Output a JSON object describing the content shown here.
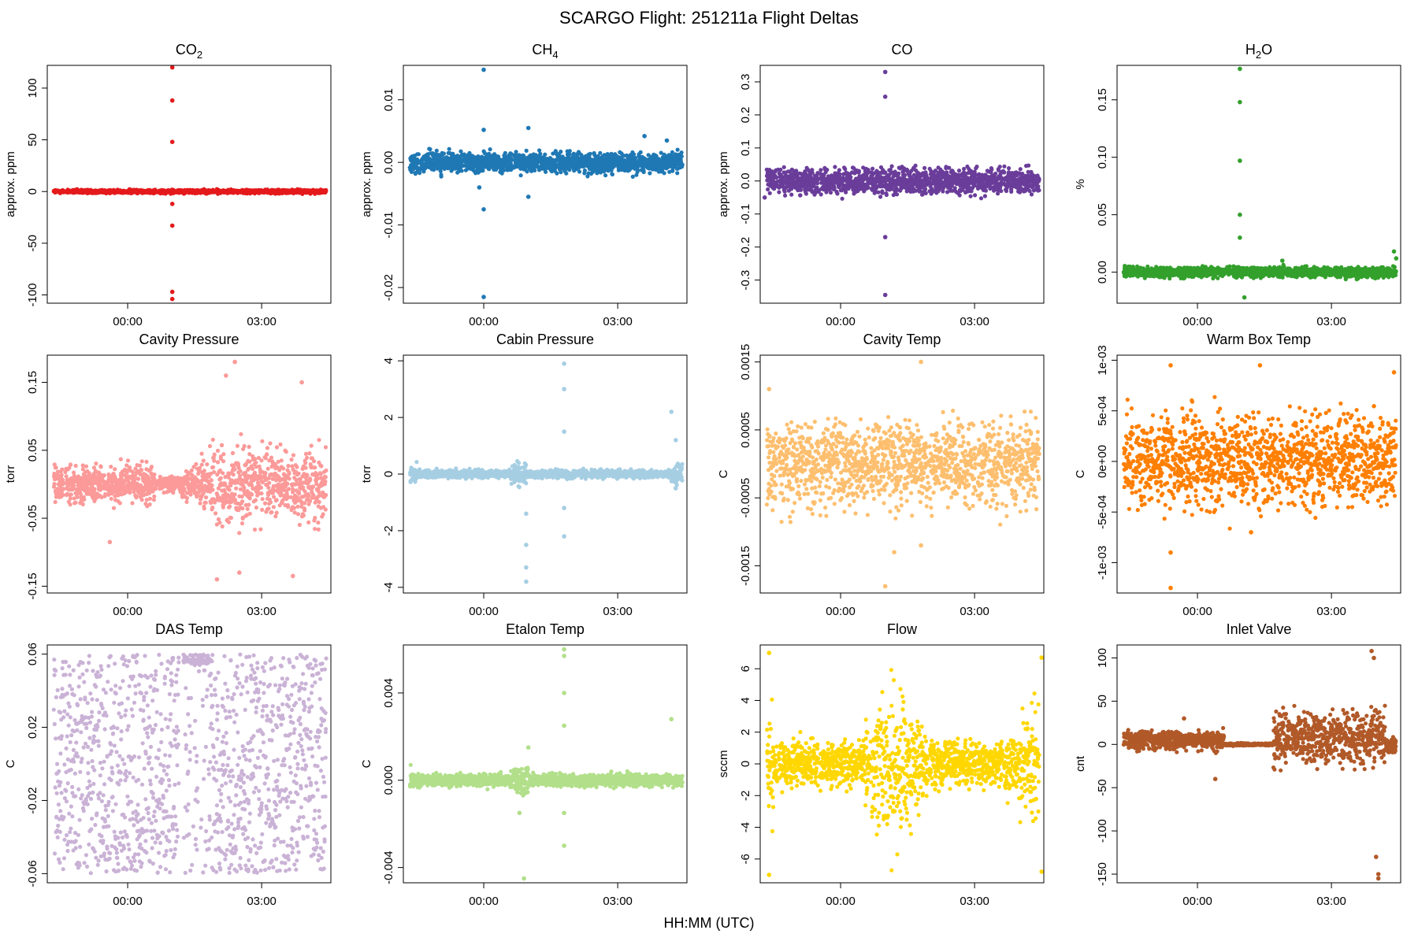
{
  "figure": {
    "title": "SCARGO Flight: 251211a  Flight Deltas",
    "xlabel": "HH:MM (UTC)"
  },
  "chart_data": [
    {
      "type": "scatter",
      "title": "CO2",
      "title_main": "CO",
      "title_sub": "2",
      "ylabel": "approx. ppm",
      "color": "#e41a1c",
      "ylim": [
        -108,
        122
      ],
      "yticks": [
        -100,
        -50,
        0,
        50,
        100
      ],
      "ytick_labels": [
        "-100",
        "-50",
        "0",
        "50",
        "100"
      ],
      "xlim": [
        -1.8,
        4.55
      ],
      "xticks": [
        0,
        3
      ],
      "xtick_labels": [
        "00:00",
        "03:00"
      ],
      "pattern": "flat",
      "noise": 1.5,
      "outliers": [
        [
          1.0,
          120
        ],
        [
          1.0,
          88
        ],
        [
          1.0,
          48
        ],
        [
          1.0,
          -33
        ],
        [
          1.0,
          -97
        ],
        [
          1.0,
          -104
        ],
        [
          1.0,
          -12
        ]
      ]
    },
    {
      "type": "scatter",
      "title": "CH4",
      "title_main": "CH",
      "title_sub": "4",
      "ylabel": "approx. ppm",
      "color": "#1f78b4",
      "ylim": [
        -0.0225,
        0.0155
      ],
      "yticks": [
        -0.02,
        -0.01,
        0,
        0.01
      ],
      "ytick_labels": [
        "-0.02",
        "-0.01",
        "0.00",
        "0.01"
      ],
      "xlim": [
        -1.8,
        4.55
      ],
      "xticks": [
        0,
        3
      ],
      "xtick_labels": [
        "00:00",
        "03:00"
      ],
      "pattern": "flat",
      "noise": 0.0014,
      "outliers": [
        [
          0.0,
          0.0148
        ],
        [
          0.0,
          0.0052
        ],
        [
          0.0,
          -0.0075
        ],
        [
          0.0,
          -0.0215
        ],
        [
          1.0,
          0.0055
        ],
        [
          1.0,
          -0.0055
        ],
        [
          3.6,
          0.0042
        ],
        [
          4.1,
          0.0035
        ],
        [
          -0.1,
          -0.004
        ]
      ]
    },
    {
      "type": "scatter",
      "title": "CO",
      "title_main": "CO",
      "title_sub": "",
      "ylabel": "approx. ppm",
      "color": "#6a3d9a",
      "ylim": [
        -0.37,
        0.35
      ],
      "yticks": [
        -0.3,
        -0.2,
        -0.1,
        0,
        0.1,
        0.2,
        0.3
      ],
      "ytick_labels": [
        "-0.3",
        "-0.2",
        "-0.1",
        "0.0",
        "0.1",
        "0.2",
        "0.3"
      ],
      "xlim": [
        -1.8,
        4.55
      ],
      "xticks": [
        0,
        3
      ],
      "xtick_labels": [
        "00:00",
        "03:00"
      ],
      "pattern": "flat",
      "noise": 0.035,
      "outliers": [
        [
          1.0,
          0.33
        ],
        [
          1.0,
          0.255
        ],
        [
          1.0,
          -0.17
        ],
        [
          1.0,
          -0.345
        ],
        [
          -1.7,
          -0.05
        ]
      ]
    },
    {
      "type": "scatter",
      "title": "H2O",
      "title_main": "H",
      "title_sub": "2",
      "title_tail": "O",
      "ylabel": "%",
      "color": "#33a02c",
      "ylim": [
        -0.027,
        0.18
      ],
      "yticks": [
        0,
        0.05,
        0.1,
        0.15
      ],
      "ytick_labels": [
        "0.00",
        "0.05",
        "0.10",
        "0.15"
      ],
      "xlim": [
        -1.8,
        4.55
      ],
      "xticks": [
        0,
        3
      ],
      "xtick_labels": [
        "00:00",
        "03:00"
      ],
      "pattern": "flat",
      "noise": 0.004,
      "outliers": [
        [
          0.95,
          0.177
        ],
        [
          0.95,
          0.148
        ],
        [
          0.95,
          0.097
        ],
        [
          0.95,
          0.05
        ],
        [
          0.95,
          0.03
        ],
        [
          1.05,
          -0.022
        ],
        [
          1.9,
          0.01
        ],
        [
          4.4,
          0.018
        ],
        [
          4.45,
          0.012
        ]
      ]
    },
    {
      "type": "scatter",
      "title": "Cavity Pressure",
      "ylabel": "torr",
      "color": "#fb9a99",
      "ylim": [
        -0.16,
        0.19
      ],
      "yticks": [
        -0.15,
        -0.05,
        0.05,
        0.15
      ],
      "ytick_labels": [
        "-0.15",
        "-0.05",
        "0.05",
        "0.15"
      ],
      "xlim": [
        -1.8,
        4.55
      ],
      "xticks": [
        0,
        3
      ],
      "xtick_labels": [
        "00:00",
        "03:00"
      ],
      "pattern": "cavp",
      "noise": 0.04,
      "outliers": [
        [
          2.4,
          0.18
        ],
        [
          2.2,
          0.16
        ],
        [
          3.9,
          0.15
        ],
        [
          2.0,
          -0.14
        ],
        [
          2.5,
          -0.13
        ],
        [
          3.7,
          -0.135
        ],
        [
          -0.4,
          -0.085
        ]
      ]
    },
    {
      "type": "scatter",
      "title": "Cabin Pressure",
      "ylabel": "torr",
      "color": "#a6cee3",
      "ylim": [
        -4.2,
        4.2
      ],
      "yticks": [
        -4,
        -2,
        0,
        2,
        4
      ],
      "ytick_labels": [
        "-4",
        "-2",
        "0",
        "2",
        "4"
      ],
      "xlim": [
        -1.8,
        4.55
      ],
      "xticks": [
        0,
        3
      ],
      "xtick_labels": [
        "00:00",
        "03:00"
      ],
      "pattern": "cabin",
      "noise": 0.12,
      "outliers": [
        [
          1.8,
          3.9
        ],
        [
          1.8,
          3.0
        ],
        [
          1.8,
          1.5
        ],
        [
          1.8,
          -1.2
        ],
        [
          1.8,
          -2.2
        ],
        [
          0.95,
          -2.5
        ],
        [
          0.95,
          -3.3
        ],
        [
          0.95,
          -3.8
        ],
        [
          0.95,
          -1.4
        ],
        [
          4.2,
          2.2
        ],
        [
          4.3,
          1.2
        ],
        [
          4.3,
          -0.5
        ]
      ]
    },
    {
      "type": "scatter",
      "title": "Cavity Temp",
      "ylabel": "C",
      "color": "#fdbf6f",
      "ylim": [
        -0.0019,
        0.0016
      ],
      "yticks": [
        -0.0015,
        -0.0005,
        0.0005,
        0.0015
      ],
      "ytick_labels": [
        "-0.0015",
        "-0.0005",
        "0.0005",
        "0.0015"
      ],
      "xlim": [
        -1.8,
        4.55
      ],
      "xticks": [
        0,
        3
      ],
      "xtick_labels": [
        "00:00",
        "03:00"
      ],
      "pattern": "block",
      "noise": 0.00055,
      "outliers": [
        [
          1.8,
          0.0015
        ],
        [
          1.0,
          -0.0018
        ],
        [
          1.2,
          -0.0013
        ],
        [
          1.8,
          -0.0012
        ],
        [
          -1.6,
          0.0011
        ]
      ]
    },
    {
      "type": "scatter",
      "title": "Warm Box Temp",
      "ylabel": "C",
      "color": "#ff7f00",
      "ylim": [
        -0.0013,
        0.00105
      ],
      "yticks": [
        -0.001,
        -0.0005,
        0,
        0.0005,
        0.001
      ],
      "ytick_labels": [
        "-1e-03",
        "-5e-04",
        "0e+00",
        "5e-04",
        "1e-03"
      ],
      "xlim": [
        -1.8,
        4.55
      ],
      "xticks": [
        0,
        3
      ],
      "xtick_labels": [
        "00:00",
        "03:00"
      ],
      "pattern": "block",
      "noise": 0.0004,
      "outliers": [
        [
          -0.6,
          0.00095
        ],
        [
          1.4,
          0.00095
        ],
        [
          4.4,
          0.00088
        ],
        [
          -0.6,
          -0.0009
        ],
        [
          -0.6,
          -0.00125
        ],
        [
          1.2,
          -0.0007
        ]
      ]
    },
    {
      "type": "scatter",
      "title": "DAS Temp",
      "ylabel": "C",
      "color": "#cab2d6",
      "ylim": [
        -0.065,
        0.065
      ],
      "yticks": [
        -0.06,
        -0.02,
        0.02,
        0.06
      ],
      "ytick_labels": [
        "-0.06",
        "-0.02",
        "0.02",
        "0.06"
      ],
      "xlim": [
        -1.8,
        4.55
      ],
      "xticks": [
        0,
        3
      ],
      "xtick_labels": [
        "00:00",
        "03:00"
      ],
      "pattern": "das",
      "noise": 0.06,
      "outliers": []
    },
    {
      "type": "scatter",
      "title": "Etalon Temp",
      "ylabel": "C",
      "color": "#b2df8a",
      "ylim": [
        -0.0047,
        0.0062
      ],
      "yticks": [
        -0.004,
        0,
        0.004
      ],
      "ytick_labels": [
        "-0.004",
        "0.000",
        "0.004"
      ],
      "xlim": [
        -1.8,
        4.55
      ],
      "xticks": [
        0,
        3
      ],
      "xtick_labels": [
        "00:00",
        "03:00"
      ],
      "pattern": "etalon",
      "noise": 0.00025,
      "outliers": [
        [
          1.8,
          0.006
        ],
        [
          1.8,
          0.0057
        ],
        [
          1.8,
          0.004
        ],
        [
          1.8,
          0.0025
        ],
        [
          1.8,
          -0.0015
        ],
        [
          1.8,
          -0.003
        ],
        [
          0.9,
          -0.0045
        ],
        [
          0.8,
          -0.0015
        ],
        [
          4.2,
          0.0028
        ],
        [
          1.0,
          0.0015
        ]
      ]
    },
    {
      "type": "scatter",
      "title": "Flow",
      "ylabel": "sccm",
      "color": "#ffd700",
      "ylim": [
        -7.5,
        7.5
      ],
      "yticks": [
        -6,
        -4,
        -2,
        0,
        2,
        4,
        6
      ],
      "ytick_labels": [
        "-6",
        "-4",
        "-2",
        "0",
        "2",
        "4",
        "6"
      ],
      "xlim": [
        -1.8,
        4.55
      ],
      "xticks": [
        0,
        3
      ],
      "xtick_labels": [
        "00:00",
        "03:00"
      ],
      "pattern": "flow",
      "noise": 1.8,
      "outliers": [
        [
          -1.6,
          7.0
        ],
        [
          -1.6,
          -7.0
        ],
        [
          4.5,
          6.7
        ],
        [
          4.5,
          -6.8
        ]
      ]
    },
    {
      "type": "scatter",
      "title": "Inlet Valve",
      "ylabel": "cnt",
      "color": "#b15928",
      "ylim": [
        -160,
        115
      ],
      "yticks": [
        -150,
        -100,
        -50,
        0,
        50,
        100
      ],
      "ytick_labels": [
        "-150",
        "-100",
        "-50",
        "0",
        "50",
        "100"
      ],
      "xlim": [
        -1.8,
        4.55
      ],
      "xticks": [
        0,
        3
      ],
      "xtick_labels": [
        "00:00",
        "03:00"
      ],
      "pattern": "valve",
      "noise": 15,
      "outliers": [
        [
          3.9,
          108
        ],
        [
          3.95,
          100
        ],
        [
          4.05,
          -150
        ],
        [
          4.05,
          -155
        ],
        [
          4.0,
          -130
        ],
        [
          0.4,
          -40
        ],
        [
          -0.3,
          30
        ]
      ]
    }
  ]
}
